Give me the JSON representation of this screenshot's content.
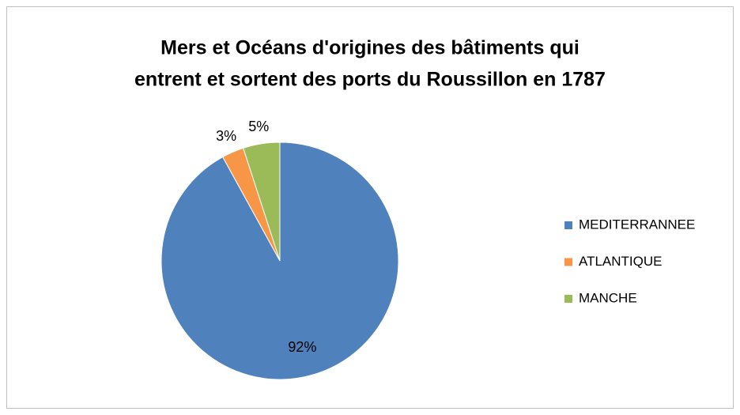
{
  "chart_data": {
    "type": "pie",
    "title": [
      "Mers et Océans d'origines des bâtiments qui",
      "entrent et sortent des ports du Roussillon en 1787"
    ],
    "categories": [
      "MEDITERRANNEE",
      "ATLANTIQUE",
      "MANCHE"
    ],
    "values": [
      92,
      3,
      5
    ],
    "value_labels": [
      "92%",
      "3%",
      "5%"
    ],
    "colors": [
      "#4f81bd",
      "#f79646",
      "#9bbb59"
    ],
    "legend": "right"
  }
}
